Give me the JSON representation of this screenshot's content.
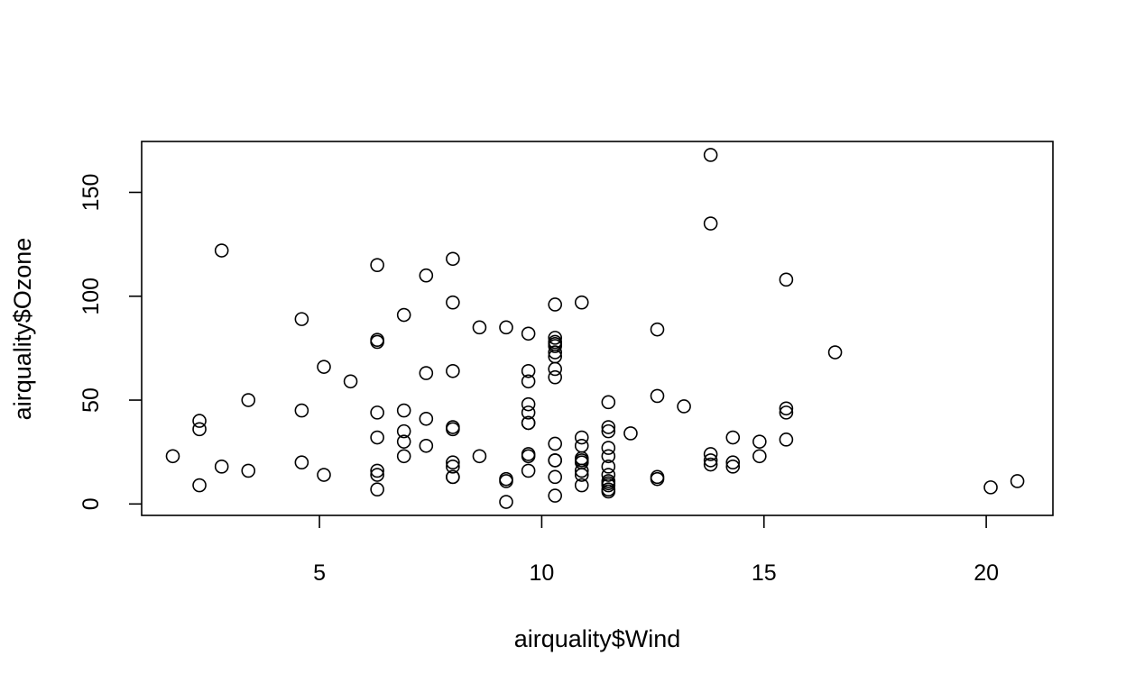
{
  "chart_data": {
    "type": "scatter",
    "title": "",
    "xlabel": "airquality$Wind",
    "ylabel": "airquality$Ozone",
    "xlim": [
      1.0,
      21.5
    ],
    "ylim": [
      -5.5,
      174.5
    ],
    "xticks": [
      5,
      10,
      15,
      20
    ],
    "yticks": [
      0,
      50,
      100,
      150
    ],
    "grid": false,
    "legend": "none",
    "series": [
      {
        "points": [
          [
            7.4,
            41
          ],
          [
            8.0,
            36
          ],
          [
            12.6,
            12
          ],
          [
            11.5,
            18
          ],
          [
            8.6,
            23
          ],
          [
            13.8,
            19
          ],
          [
            20.1,
            8
          ],
          [
            9.7,
            16
          ],
          [
            9.2,
            11
          ],
          [
            10.9,
            14
          ],
          [
            8.0,
            18
          ],
          [
            11.5,
            14
          ],
          [
            12.0,
            34
          ],
          [
            11.5,
            6
          ],
          [
            14.9,
            30
          ],
          [
            20.7,
            11
          ],
          [
            9.2,
            1
          ],
          [
            11.5,
            11
          ],
          [
            10.3,
            4
          ],
          [
            6.3,
            32
          ],
          [
            1.7,
            23
          ],
          [
            4.6,
            45
          ],
          [
            6.3,
            115
          ],
          [
            8.0,
            37
          ],
          [
            10.3,
            29
          ],
          [
            10.3,
            71
          ],
          [
            9.7,
            39
          ],
          [
            6.9,
            23
          ],
          [
            13.8,
            21
          ],
          [
            11.5,
            37
          ],
          [
            10.9,
            20
          ],
          [
            9.2,
            12
          ],
          [
            8.0,
            13
          ],
          [
            13.8,
            135
          ],
          [
            11.5,
            49
          ],
          [
            10.9,
            32
          ],
          [
            9.7,
            64
          ],
          [
            2.3,
            40
          ],
          [
            10.3,
            77
          ],
          [
            8.0,
            97
          ],
          [
            10.9,
            97
          ],
          [
            8.6,
            85
          ],
          [
            11.5,
            10
          ],
          [
            11.5,
            27
          ],
          [
            11.5,
            7
          ],
          [
            9.7,
            48
          ],
          [
            11.5,
            35
          ],
          [
            10.3,
            61
          ],
          [
            6.3,
            79
          ],
          [
            7.4,
            63
          ],
          [
            10.9,
            16
          ],
          [
            10.3,
            80
          ],
          [
            15.5,
            108
          ],
          [
            14.3,
            20
          ],
          [
            12.6,
            52
          ],
          [
            9.7,
            82
          ],
          [
            3.4,
            50
          ],
          [
            8.0,
            64
          ],
          [
            5.7,
            59
          ],
          [
            9.7,
            39
          ],
          [
            2.3,
            9
          ],
          [
            6.3,
            16
          ],
          [
            6.3,
            78
          ],
          [
            6.9,
            35
          ],
          [
            5.1,
            66
          ],
          [
            2.8,
            122
          ],
          [
            4.6,
            89
          ],
          [
            7.4,
            110
          ],
          [
            15.5,
            44
          ],
          [
            10.9,
            28
          ],
          [
            10.3,
            65
          ],
          [
            10.9,
            22
          ],
          [
            9.7,
            59
          ],
          [
            14.9,
            23
          ],
          [
            15.5,
            31
          ],
          [
            6.3,
            44
          ],
          [
            10.9,
            21
          ],
          [
            11.5,
            9
          ],
          [
            6.9,
            45
          ],
          [
            13.8,
            168
          ],
          [
            10.3,
            73
          ],
          [
            10.3,
            76
          ],
          [
            8.0,
            118
          ],
          [
            12.6,
            84
          ],
          [
            9.2,
            85
          ],
          [
            10.3,
            96
          ],
          [
            10.3,
            78
          ],
          [
            16.6,
            73
          ],
          [
            6.9,
            91
          ],
          [
            13.2,
            47
          ],
          [
            14.3,
            32
          ],
          [
            8.0,
            20
          ],
          [
            11.5,
            23
          ],
          [
            10.3,
            21
          ],
          [
            13.8,
            24
          ],
          [
            9.7,
            44
          ],
          [
            10.3,
            21
          ],
          [
            7.4,
            28
          ],
          [
            10.9,
            9
          ],
          [
            10.3,
            13
          ],
          [
            15.5,
            46
          ],
          [
            14.3,
            18
          ],
          [
            12.6,
            13
          ],
          [
            9.7,
            24
          ],
          [
            3.4,
            16
          ],
          [
            8.0,
            13
          ],
          [
            9.7,
            23
          ],
          [
            2.3,
            36
          ],
          [
            6.3,
            7
          ],
          [
            6.3,
            14
          ],
          [
            6.9,
            30
          ],
          [
            5.1,
            14
          ],
          [
            2.8,
            18
          ],
          [
            4.6,
            20
          ]
        ]
      }
    ]
  }
}
